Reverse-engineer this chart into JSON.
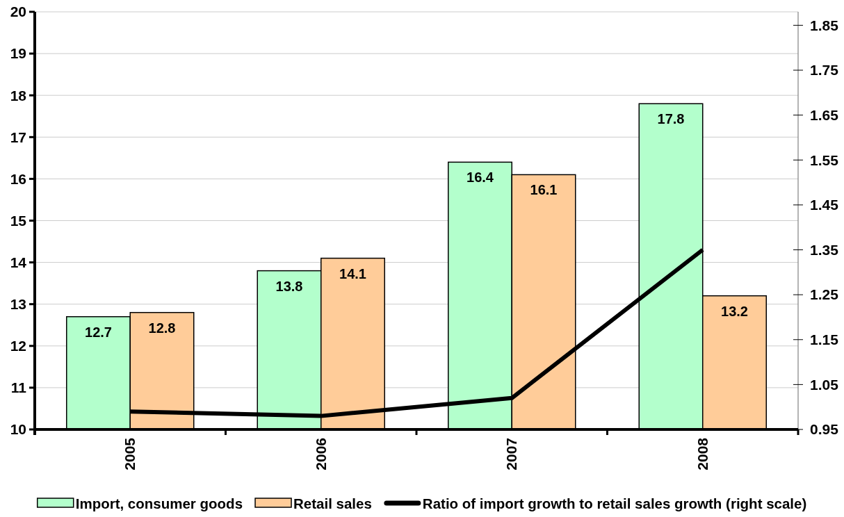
{
  "chart_data": {
    "type": "bar",
    "categories": [
      "2005",
      "2006",
      "2007",
      "2008"
    ],
    "series": [
      {
        "name": "Import, consumer goods",
        "color": "#b3ffcc",
        "values": [
          12.7,
          13.8,
          16.4,
          17.8
        ],
        "value_labels": [
          "12.7",
          "13.8",
          "16.4",
          "17.8"
        ]
      },
      {
        "name": "Retail sales",
        "color": "#ffcc99",
        "values": [
          12.8,
          14.1,
          16.1,
          13.2
        ],
        "value_labels": [
          "12.8",
          "14.1",
          "16.1",
          "13.2"
        ]
      },
      {
        "name": "Ratio of import growth to retail sales growth (right scale)",
        "type": "line",
        "axis": "y2",
        "color": "#000000",
        "values": [
          0.99,
          0.98,
          1.02,
          1.35
        ]
      }
    ],
    "ylim": [
      10,
      20
    ],
    "yticks": [
      10,
      11,
      12,
      13,
      14,
      15,
      16,
      17,
      18,
      19,
      20
    ],
    "y2lim": [
      0.95,
      1.88
    ],
    "y2ticks": [
      0.95,
      1.05,
      1.15,
      1.25,
      1.35,
      1.45,
      1.55,
      1.65,
      1.75,
      1.85
    ],
    "grid": "y",
    "legend": "bottom"
  }
}
